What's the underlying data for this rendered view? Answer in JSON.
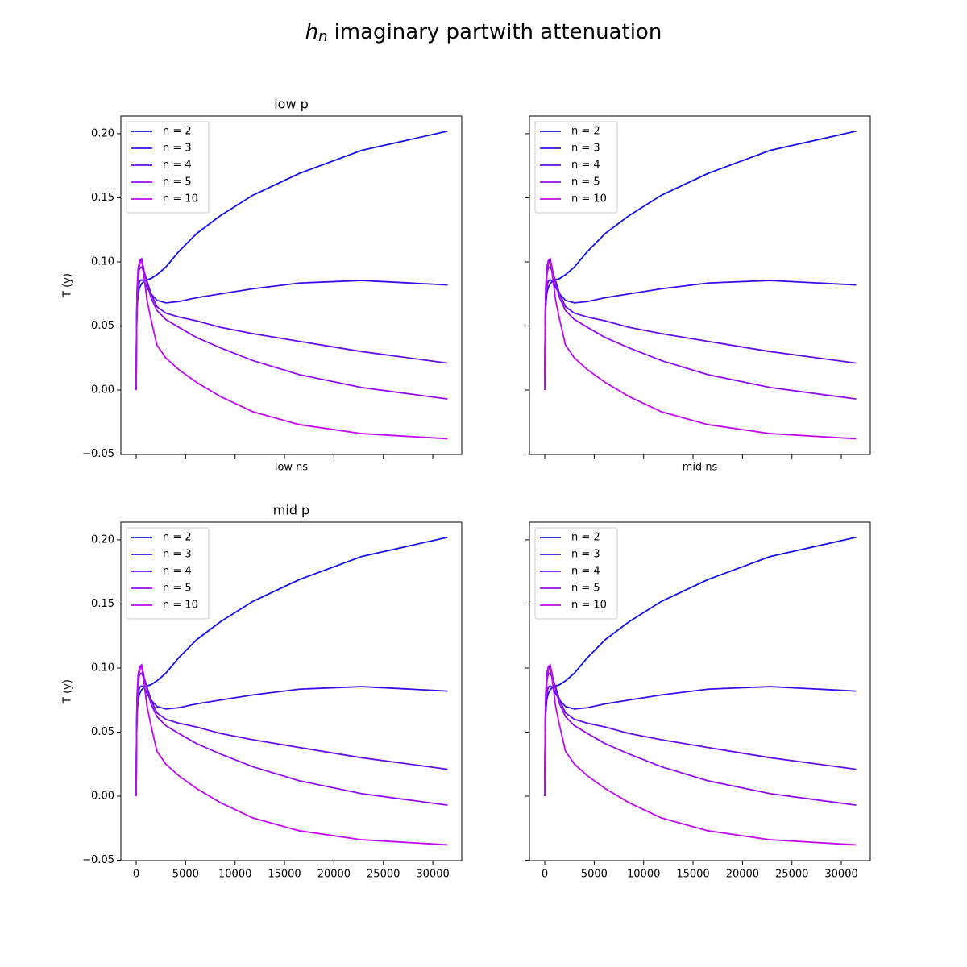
{
  "title": {
    "symbol": "h",
    "subscript": "n",
    "text": "imaginary partwith attenuation"
  },
  "chart_data": [
    {
      "type": "line",
      "title": "low p",
      "xlabel": "low ns",
      "ylabel": "T (y)",
      "xtick_labels": false,
      "ytick_labels": true,
      "legend": "upper left",
      "x": [
        0,
        20,
        50,
        100,
        200,
        350,
        550,
        800,
        1100,
        1500,
        2100,
        3000,
        4300,
        6100,
        8500,
        11800,
        16500,
        22800,
        31500
      ],
      "series": [
        {
          "name": "n = 2",
          "color": "#1414e6",
          "values": [
            0,
            0.03,
            0.05,
            0.065,
            0.075,
            0.08,
            0.083,
            0.085,
            0.086,
            0.087,
            0.09,
            0.096,
            0.108,
            0.122,
            0.136,
            0.152,
            0.169,
            0.187,
            0.202
          ]
        },
        {
          "name": "n = 3",
          "color": "#3a0fe8",
          "values": [
            0,
            0.03,
            0.055,
            0.07,
            0.08,
            0.085,
            0.086,
            0.085,
            0.08,
            0.075,
            0.07,
            0.068,
            0.069,
            0.072,
            0.075,
            0.079,
            0.0835,
            0.0855,
            0.082
          ]
        },
        {
          "name": "n = 4",
          "color": "#650eec",
          "values": [
            0,
            0.03,
            0.06,
            0.08,
            0.09,
            0.095,
            0.096,
            0.092,
            0.085,
            0.075,
            0.065,
            0.06,
            0.057,
            0.054,
            0.049,
            0.044,
            0.038,
            0.03,
            0.021
          ]
        },
        {
          "name": "n = 5",
          "color": "#920cf0",
          "values": [
            0,
            0.03,
            0.06,
            0.08,
            0.095,
            0.101,
            0.1025,
            0.093,
            0.083,
            0.072,
            0.062,
            0.055,
            0.049,
            0.041,
            0.033,
            0.023,
            0.012,
            0.002,
            -0.007
          ]
        },
        {
          "name": "n = 10",
          "color": "#c00af2",
          "values": [
            0,
            0.025,
            0.05,
            0.07,
            0.088,
            0.098,
            0.102,
            0.088,
            0.07,
            0.055,
            0.035,
            0.025,
            0.016,
            0.006,
            -0.005,
            -0.017,
            -0.027,
            -0.034,
            -0.038
          ]
        }
      ],
      "xlim": [
        -1550,
        32930
      ],
      "ylim": [
        -0.0503,
        0.2138
      ],
      "xticks": [
        0,
        5000,
        10000,
        15000,
        20000,
        25000,
        30000
      ],
      "yticks": [
        {
          "value": -0.05,
          "label": "−0.05"
        },
        {
          "value": 0,
          "label": "0.00"
        },
        0.05,
        {
          "value": 0.1,
          "label": "0.10"
        },
        0.15,
        {
          "value": 0.2,
          "label": "0.20"
        }
      ]
    },
    {
      "type": "line",
      "xlabel": "mid ns",
      "xtick_labels": false,
      "ytick_labels": false,
      "legend": "upper left",
      "x": [
        0,
        20,
        50,
        100,
        200,
        350,
        550,
        800,
        1100,
        1500,
        2100,
        3000,
        4300,
        6100,
        8500,
        11800,
        16500,
        22800,
        31500
      ],
      "series": [
        {
          "name": "n = 2",
          "color": "#1414e6",
          "values": [
            0,
            0.03,
            0.05,
            0.065,
            0.075,
            0.08,
            0.083,
            0.085,
            0.086,
            0.087,
            0.09,
            0.096,
            0.108,
            0.122,
            0.136,
            0.152,
            0.169,
            0.187,
            0.202
          ]
        },
        {
          "name": "n = 3",
          "color": "#3a0fe8",
          "values": [
            0,
            0.03,
            0.055,
            0.07,
            0.08,
            0.085,
            0.086,
            0.085,
            0.08,
            0.075,
            0.07,
            0.068,
            0.069,
            0.072,
            0.075,
            0.079,
            0.0835,
            0.0855,
            0.082
          ]
        },
        {
          "name": "n = 4",
          "color": "#650eec",
          "values": [
            0,
            0.03,
            0.06,
            0.08,
            0.09,
            0.095,
            0.096,
            0.092,
            0.085,
            0.075,
            0.065,
            0.06,
            0.057,
            0.054,
            0.049,
            0.044,
            0.038,
            0.03,
            0.021
          ]
        },
        {
          "name": "n = 5",
          "color": "#920cf0",
          "values": [
            0,
            0.03,
            0.06,
            0.08,
            0.095,
            0.101,
            0.1025,
            0.093,
            0.083,
            0.072,
            0.062,
            0.055,
            0.049,
            0.041,
            0.033,
            0.023,
            0.012,
            0.002,
            -0.007
          ]
        },
        {
          "name": "n = 10",
          "color": "#c00af2",
          "values": [
            0,
            0.025,
            0.05,
            0.07,
            0.088,
            0.098,
            0.102,
            0.088,
            0.07,
            0.055,
            0.035,
            0.025,
            0.016,
            0.006,
            -0.005,
            -0.017,
            -0.027,
            -0.034,
            -0.038
          ]
        }
      ],
      "xlim": [
        -1550,
        32930
      ],
      "ylim": [
        -0.0503,
        0.2138
      ],
      "xticks": [
        0,
        5000,
        10000,
        15000,
        20000,
        25000,
        30000
      ],
      "yticks": [
        -0.05,
        0,
        0.05,
        0.1,
        0.15,
        0.2
      ]
    },
    {
      "type": "line",
      "title": "mid p",
      "ylabel": "T (y)",
      "xtick_labels": true,
      "ytick_labels": true,
      "legend": "upper left",
      "x": [
        0,
        20,
        50,
        100,
        200,
        350,
        550,
        800,
        1100,
        1500,
        2100,
        3000,
        4300,
        6100,
        8500,
        11800,
        16500,
        22800,
        31500
      ],
      "series": [
        {
          "name": "n = 2",
          "color": "#1414e6",
          "values": [
            0,
            0.03,
            0.05,
            0.065,
            0.075,
            0.08,
            0.083,
            0.085,
            0.086,
            0.087,
            0.09,
            0.096,
            0.108,
            0.122,
            0.136,
            0.152,
            0.169,
            0.187,
            0.202
          ]
        },
        {
          "name": "n = 3",
          "color": "#3a0fe8",
          "values": [
            0,
            0.03,
            0.055,
            0.07,
            0.08,
            0.085,
            0.086,
            0.085,
            0.08,
            0.075,
            0.07,
            0.068,
            0.069,
            0.072,
            0.075,
            0.079,
            0.0835,
            0.0855,
            0.082
          ]
        },
        {
          "name": "n = 4",
          "color": "#650eec",
          "values": [
            0,
            0.03,
            0.06,
            0.08,
            0.09,
            0.095,
            0.096,
            0.092,
            0.085,
            0.075,
            0.065,
            0.06,
            0.057,
            0.054,
            0.049,
            0.044,
            0.038,
            0.03,
            0.021
          ]
        },
        {
          "name": "n = 5",
          "color": "#920cf0",
          "values": [
            0,
            0.03,
            0.06,
            0.08,
            0.095,
            0.101,
            0.1025,
            0.093,
            0.083,
            0.072,
            0.062,
            0.055,
            0.049,
            0.041,
            0.033,
            0.023,
            0.012,
            0.002,
            -0.007
          ]
        },
        {
          "name": "n = 10",
          "color": "#c00af2",
          "values": [
            0,
            0.025,
            0.05,
            0.07,
            0.088,
            0.098,
            0.102,
            0.088,
            0.07,
            0.055,
            0.035,
            0.025,
            0.016,
            0.006,
            -0.005,
            -0.017,
            -0.027,
            -0.034,
            -0.038
          ]
        }
      ],
      "xlim": [
        -1550,
        32930
      ],
      "ylim": [
        -0.0503,
        0.2138
      ],
      "xticks": [
        0,
        5000,
        10000,
        15000,
        20000,
        25000,
        30000
      ],
      "yticks": [
        {
          "value": -0.05,
          "label": "−0.05"
        },
        {
          "value": 0,
          "label": "0.00"
        },
        0.05,
        {
          "value": 0.1,
          "label": "0.10"
        },
        0.15,
        {
          "value": 0.2,
          "label": "0.20"
        }
      ]
    },
    {
      "type": "line",
      "xtick_labels": true,
      "ytick_labels": false,
      "legend": "upper left",
      "x": [
        0,
        20,
        50,
        100,
        200,
        350,
        550,
        800,
        1100,
        1500,
        2100,
        3000,
        4300,
        6100,
        8500,
        11800,
        16500,
        22800,
        31500
      ],
      "series": [
        {
          "name": "n = 2",
          "color": "#1414e6",
          "values": [
            0,
            0.03,
            0.05,
            0.065,
            0.075,
            0.08,
            0.083,
            0.085,
            0.086,
            0.087,
            0.09,
            0.096,
            0.108,
            0.122,
            0.136,
            0.152,
            0.169,
            0.187,
            0.202
          ]
        },
        {
          "name": "n = 3",
          "color": "#3a0fe8",
          "values": [
            0,
            0.03,
            0.055,
            0.07,
            0.08,
            0.085,
            0.086,
            0.085,
            0.08,
            0.075,
            0.07,
            0.068,
            0.069,
            0.072,
            0.075,
            0.079,
            0.0835,
            0.0855,
            0.082
          ]
        },
        {
          "name": "n = 4",
          "color": "#650eec",
          "values": [
            0,
            0.03,
            0.06,
            0.08,
            0.09,
            0.095,
            0.096,
            0.092,
            0.085,
            0.075,
            0.065,
            0.06,
            0.057,
            0.054,
            0.049,
            0.044,
            0.038,
            0.03,
            0.021
          ]
        },
        {
          "name": "n = 5",
          "color": "#920cf0",
          "values": [
            0,
            0.03,
            0.06,
            0.08,
            0.095,
            0.101,
            0.1025,
            0.093,
            0.083,
            0.072,
            0.062,
            0.055,
            0.049,
            0.041,
            0.033,
            0.023,
            0.012,
            0.002,
            -0.007
          ]
        },
        {
          "name": "n = 10",
          "color": "#c00af2",
          "values": [
            0,
            0.025,
            0.05,
            0.07,
            0.088,
            0.098,
            0.102,
            0.088,
            0.07,
            0.055,
            0.035,
            0.025,
            0.016,
            0.006,
            -0.005,
            -0.017,
            -0.027,
            -0.034,
            -0.038
          ]
        }
      ],
      "xlim": [
        -1550,
        32930
      ],
      "ylim": [
        -0.0503,
        0.2138
      ],
      "xticks": [
        0,
        5000,
        10000,
        15000,
        20000,
        25000,
        30000
      ],
      "yticks": [
        -0.05,
        0,
        0.05,
        0.1,
        0.15,
        0.2
      ]
    }
  ]
}
